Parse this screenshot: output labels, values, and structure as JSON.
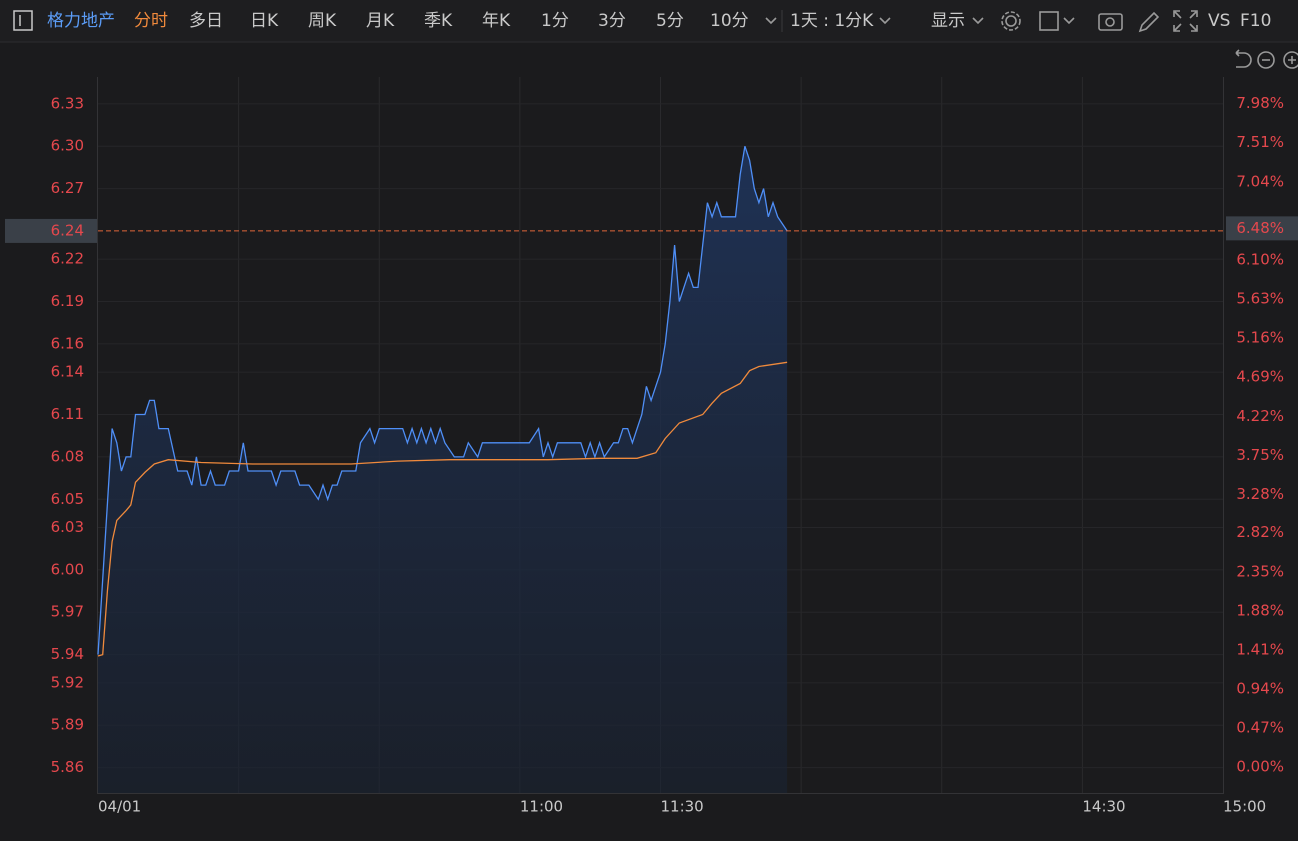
{
  "toolbar": {
    "stock": "格力地产",
    "tabs": [
      "分时",
      "多日",
      "日K",
      "周K",
      "月K",
      "季K",
      "年K",
      "1分",
      "3分",
      "5分",
      "10分"
    ],
    "period": "1天 : 1分K",
    "display": "显示",
    "vs": "VS",
    "f10": "F10"
  },
  "chart_data": {
    "type": "line",
    "xlim": [
      0,
      240
    ],
    "xticks": [
      {
        "value": 0,
        "label": "04/01"
      },
      {
        "value": 30,
        "label": null
      },
      {
        "value": 60,
        "label": null
      },
      {
        "value": 90,
        "label": "11:00"
      },
      {
        "value": 120,
        "label": "11:30"
      },
      {
        "value": 150,
        "label": null
      },
      {
        "value": 180,
        "label": null
      },
      {
        "value": 210,
        "label": "14:30"
      },
      {
        "value": 240,
        "label": "15:00"
      }
    ],
    "ylim": [
      5.842,
      6.349
    ],
    "yticks": [
      6.33,
      {
        "value": 6.3,
        "label": "6.30"
      },
      6.27,
      6.22,
      6.19,
      6.16,
      6.14,
      6.11,
      6.08,
      6.05,
      6.03,
      {
        "value": 6,
        "label": "6.00"
      },
      5.97,
      5.94,
      5.92,
      5.89,
      5.86
    ],
    "y2lim": [
      -0.31,
      8.3
    ],
    "y2ticks": [
      {
        "value": 7.98,
        "label": "7.98%"
      },
      {
        "value": 7.51,
        "label": "7.51%"
      },
      {
        "value": 7.04,
        "label": "7.04%"
      },
      {
        "value": 6.1,
        "label": "6.10%"
      },
      {
        "value": 5.63,
        "label": "5.63%"
      },
      {
        "value": 5.16,
        "label": "5.16%"
      },
      {
        "value": 4.69,
        "label": "4.69%"
      },
      {
        "value": 4.22,
        "label": "4.22%"
      },
      {
        "value": 3.75,
        "label": "3.75%"
      },
      {
        "value": 3.28,
        "label": "3.28%"
      },
      {
        "value": 2.82,
        "label": "2.82%"
      },
      {
        "value": 2.35,
        "label": "2.35%"
      },
      {
        "value": 1.88,
        "label": "1.88%"
      },
      {
        "value": 1.41,
        "label": "1.41%"
      },
      {
        "value": 0.94,
        "label": "0.94%"
      },
      {
        "value": 0.47,
        "label": "0.47%"
      },
      {
        "value": 0,
        "label": "0.00%"
      }
    ],
    "grid": true,
    "last_price": 6.24,
    "last_change": {
      "value": 6.48,
      "label": "6.48%"
    },
    "series": [
      {
        "color": "#4f8ff7",
        "x": [
          0,
          3,
          4,
          5,
          6,
          7,
          8,
          10,
          11,
          12,
          13,
          15,
          17,
          19,
          20,
          21,
          22,
          23,
          24,
          25,
          27,
          28,
          30,
          31,
          32,
          37,
          38,
          39,
          42,
          43,
          45,
          47,
          48,
          49,
          50,
          51,
          52,
          55,
          56,
          58,
          59,
          60,
          65,
          66,
          67,
          68,
          69,
          70,
          71,
          72,
          73,
          74,
          76,
          78,
          79,
          81,
          82,
          92,
          94,
          95,
          96,
          97,
          98,
          103,
          104,
          105,
          106,
          107,
          108,
          110,
          111,
          112,
          113,
          114,
          115,
          116,
          117,
          118,
          120,
          121,
          122,
          123,
          124,
          125,
          126,
          127,
          128,
          129,
          130,
          131,
          132,
          133,
          136,
          137,
          138,
          139,
          140,
          141,
          142,
          143,
          144,
          145,
          147
        ],
        "values": [
          5.94,
          6.1,
          6.09,
          6.07,
          6.08,
          6.08,
          6.11,
          6.11,
          6.12,
          6.12,
          6.1,
          6.1,
          6.07,
          6.07,
          6.06,
          6.08,
          6.06,
          6.06,
          6.07,
          6.06,
          6.06,
          6.07,
          6.07,
          6.09,
          6.07,
          6.07,
          6.06,
          6.07,
          6.07,
          6.06,
          6.06,
          6.05,
          6.06,
          6.05,
          6.06,
          6.06,
          6.07,
          6.07,
          6.09,
          6.1,
          6.09,
          6.1,
          6.1,
          6.09,
          6.1,
          6.09,
          6.1,
          6.09,
          6.1,
          6.09,
          6.1,
          6.09,
          6.08,
          6.08,
          6.09,
          6.08,
          6.09,
          6.09,
          6.1,
          6.08,
          6.09,
          6.08,
          6.09,
          6.09,
          6.08,
          6.09,
          6.08,
          6.09,
          6.08,
          6.09,
          6.09,
          6.1,
          6.1,
          6.09,
          6.1,
          6.11,
          6.13,
          6.12,
          6.14,
          6.16,
          6.19,
          6.23,
          6.19,
          6.2,
          6.21,
          6.2,
          6.2,
          6.23,
          6.26,
          6.25,
          6.26,
          6.25,
          6.25,
          6.28,
          6.3,
          6.29,
          6.27,
          6.26,
          6.27,
          6.25,
          6.26,
          6.25,
          6.24
        ]
      },
      {
        "color": "#f08a3c",
        "x": [
          0,
          1,
          2,
          3,
          4,
          6,
          7,
          8,
          10,
          12,
          15,
          22,
          33,
          43,
          54,
          64,
          75,
          86,
          96,
          107,
          115,
          119,
          121,
          124,
          129,
          131,
          133,
          137,
          139,
          141,
          147
        ],
        "values": [
          5.939,
          5.94,
          5.985,
          6.02,
          6.035,
          6.042,
          6.046,
          6.062,
          6.069,
          6.075,
          6.078,
          6.076,
          6.075,
          6.075,
          6.075,
          6.077,
          6.078,
          6.078,
          6.078,
          6.079,
          6.079,
          6.083,
          6.093,
          6.104,
          6.11,
          6.118,
          6.125,
          6.132,
          6.141,
          6.144,
          6.147
        ]
      }
    ]
  }
}
